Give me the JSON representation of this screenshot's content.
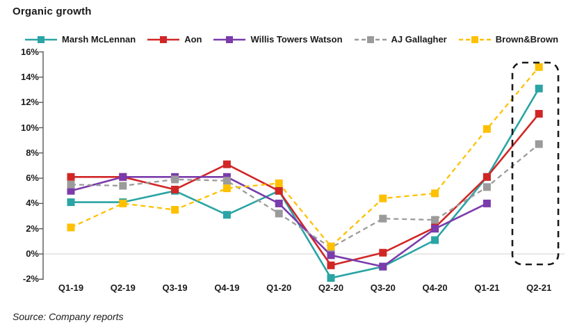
{
  "title": "Organic growth",
  "source": "Source: Company reports",
  "chart_data": {
    "type": "line",
    "title": "Organic growth",
    "categories": [
      "Q1-19",
      "Q2-19",
      "Q3-19",
      "Q4-19",
      "Q1-20",
      "Q2-20",
      "Q3-20",
      "Q4-20",
      "Q1-21",
      "Q2-21"
    ],
    "series": [
      {
        "name": "Marsh McLennan",
        "color": "#2AA4A4",
        "line_style": "solid",
        "values": [
          4.1,
          4.1,
          5.0,
          3.1,
          5.0,
          -1.9,
          -1.0,
          1.1,
          6.1,
          13.1
        ]
      },
      {
        "name": "Aon",
        "color": "#D12626",
        "line_style": "solid",
        "values": [
          6.1,
          6.1,
          5.1,
          7.1,
          5.0,
          -0.9,
          0.1,
          2.1,
          6.1,
          11.1
        ]
      },
      {
        "name": "Willis Towers Watson",
        "color": "#7A3BAB",
        "line_style": "solid",
        "values": [
          5.0,
          6.1,
          6.1,
          6.1,
          4.0,
          -0.1,
          -1.0,
          2.0,
          4.0,
          null
        ]
      },
      {
        "name": "AJ Gallagher",
        "color": "#9B9B9B",
        "line_style": "dashed",
        "values": [
          5.5,
          5.4,
          5.9,
          5.8,
          3.2,
          0.5,
          2.8,
          2.7,
          5.3,
          8.7
        ]
      },
      {
        "name": "Brown&Brown",
        "color": "#FFC000",
        "line_style": "dashed",
        "values": [
          2.1,
          4.0,
          3.5,
          5.2,
          5.6,
          0.6,
          4.4,
          4.8,
          9.9,
          14.8
        ]
      }
    ],
    "xlabel": "",
    "ylabel": "",
    "ylim": [
      -2,
      16
    ],
    "y_ticks": [
      "16%",
      "14%",
      "12%",
      "10%",
      "8%",
      "6%",
      "4%",
      "2%",
      "0%",
      "-2%"
    ],
    "grid": "zero-line-only",
    "legend_position": "top",
    "marker": "square",
    "highlight_box": {
      "category": "Q2-21",
      "style": "black-dashed-rounded"
    }
  }
}
